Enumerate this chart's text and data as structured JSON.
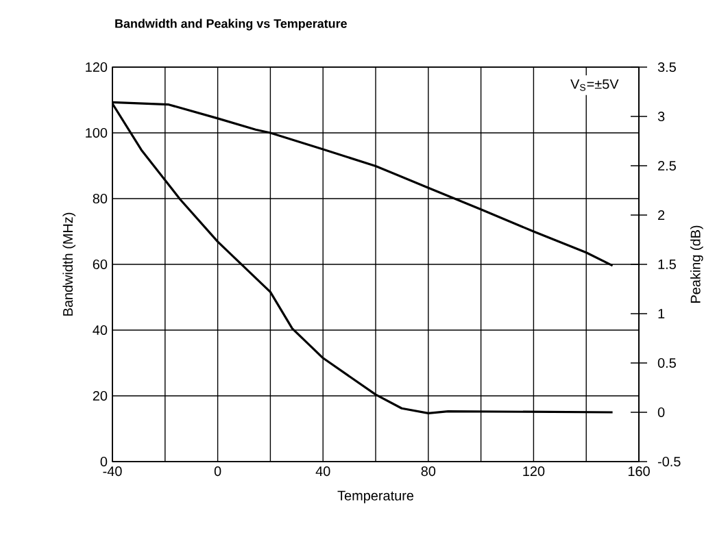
{
  "chart_data": {
    "type": "line",
    "title": "Bandwidth and Peaking vs Temperature",
    "xlabel": "Temperature",
    "ylabel": "Bandwidth (MHz)",
    "y2label": "Peaking (dB)",
    "annotations": [
      "V$_{S}$=±5V"
    ],
    "xlim": [
      -40,
      160
    ],
    "xticks": [
      -40,
      {
        "value": -20,
        "label": null
      },
      0,
      {
        "value": 20,
        "label": null
      },
      40,
      {
        "value": 60,
        "label": null
      },
      80,
      {
        "value": 100,
        "label": null
      },
      120,
      {
        "value": 140,
        "label": null
      },
      160
    ],
    "ylim": [
      0,
      120
    ],
    "yticks": [
      0,
      20,
      40,
      60,
      80,
      100,
      120
    ],
    "y2lim": [
      -0.5,
      3.5
    ],
    "y2ticks": [
      -0.5,
      0,
      0.5,
      1,
      1.5,
      2,
      2.5,
      3,
      3.5
    ],
    "grid": true,
    "marker": "none",
    "line_style": "solid",
    "series": [
      {
        "color": "#000000",
        "axis": "y",
        "x": [
          -40,
          -18.6,
          0,
          14.4,
          20,
          40,
          60,
          80,
          100,
          120,
          140,
          150
        ],
        "values": [
          109.3,
          108.6,
          104.4,
          101,
          100,
          95,
          89.9,
          83.3,
          76.7,
          70,
          63.6,
          59.6
        ]
      },
      {
        "color": "#000000",
        "axis": "y2",
        "x": [
          -40,
          -29,
          -14.3,
          0,
          20,
          28.3,
          40,
          60,
          69.9,
          80,
          87.5,
          150
        ],
        "values": [
          3.13,
          2.66,
          2.16,
          1.73,
          1.22,
          0.85,
          0.55,
          0.18,
          0.04,
          -0.01,
          0.01,
          0.0
        ]
      }
    ]
  }
}
